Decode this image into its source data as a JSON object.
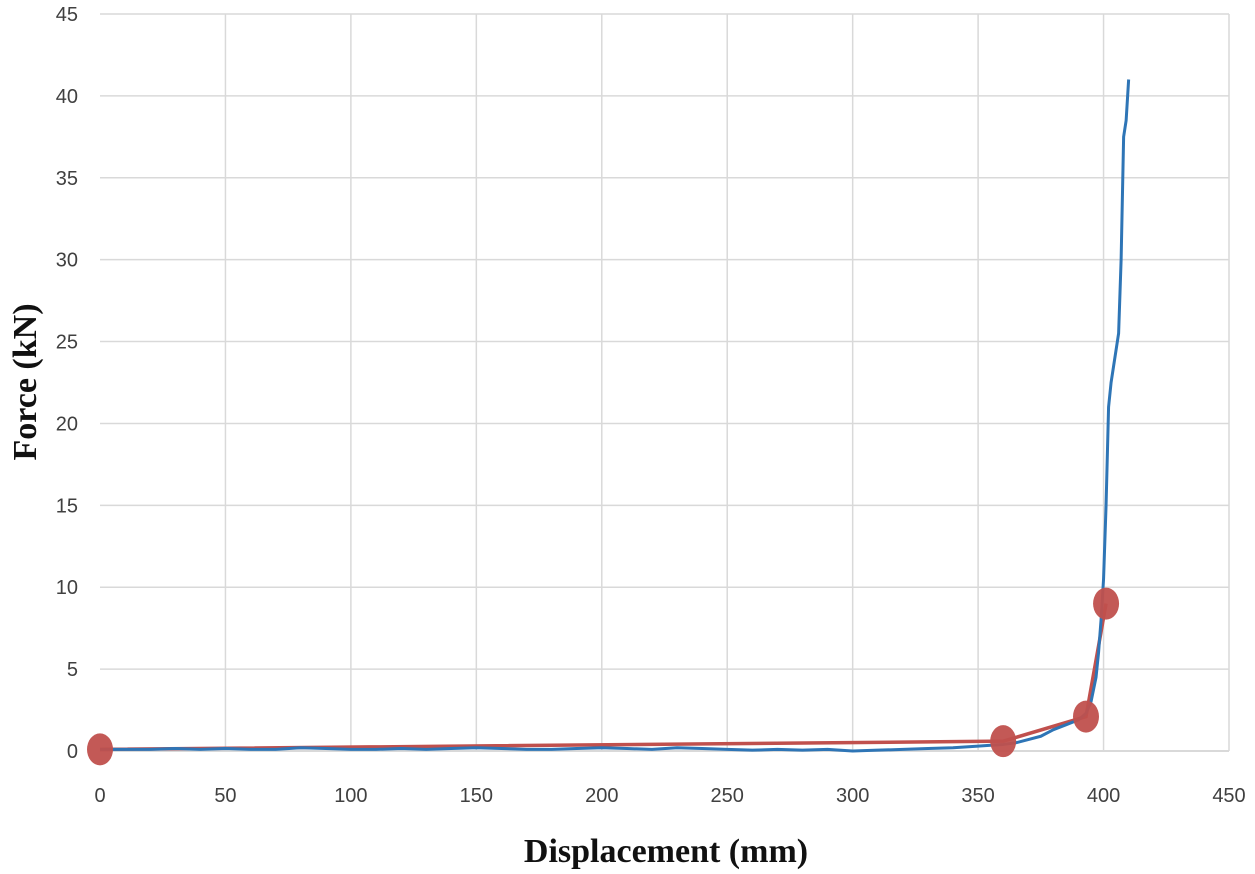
{
  "chart_data": {
    "type": "line",
    "title": "",
    "xlabel": "Displacement (mm)",
    "ylabel": "Force (kN)",
    "xlim": [
      0,
      450
    ],
    "ylim": [
      0,
      45
    ],
    "xticks": [
      0,
      50,
      100,
      150,
      200,
      250,
      300,
      350,
      400,
      450
    ],
    "yticks": [
      0,
      5,
      10,
      15,
      20,
      25,
      30,
      35,
      40,
      45
    ],
    "grid": true,
    "legend": "none",
    "colors": {
      "measured": "#2e75b6",
      "fitted": "#c0504d",
      "grid": "#d9d9d9"
    },
    "series": [
      {
        "kind": "measured-curve",
        "x": [
          0,
          10,
          20,
          30,
          40,
          50,
          60,
          70,
          80,
          90,
          100,
          110,
          120,
          130,
          140,
          150,
          160,
          170,
          180,
          190,
          200,
          210,
          220,
          230,
          240,
          250,
          260,
          270,
          280,
          290,
          300,
          310,
          320,
          330,
          340,
          350,
          355,
          360,
          365,
          370,
          375,
          380,
          385,
          390,
          393,
          395,
          397,
          398,
          399,
          400,
          401,
          402,
          403,
          404,
          405,
          406,
          407,
          408,
          409,
          410
        ],
        "y": [
          0.1,
          0.1,
          0.1,
          0.15,
          0.1,
          0.15,
          0.1,
          0.1,
          0.2,
          0.15,
          0.1,
          0.1,
          0.15,
          0.1,
          0.15,
          0.2,
          0.15,
          0.1,
          0.1,
          0.15,
          0.2,
          0.15,
          0.1,
          0.2,
          0.15,
          0.1,
          0.05,
          0.1,
          0.05,
          0.1,
          0.0,
          0.05,
          0.1,
          0.15,
          0.2,
          0.3,
          0.35,
          0.4,
          0.5,
          0.7,
          0.9,
          1.3,
          1.6,
          1.9,
          2.3,
          3.0,
          4.5,
          6.0,
          8.0,
          10.5,
          15.0,
          21.0,
          22.5,
          23.5,
          24.5,
          25.5,
          30.0,
          37.5,
          38.5,
          41.0
        ]
      },
      {
        "kind": "fitted-line",
        "x": [
          0,
          360,
          393,
          401
        ],
        "y": [
          0.1,
          0.6,
          2.1,
          9.0
        ]
      }
    ]
  }
}
